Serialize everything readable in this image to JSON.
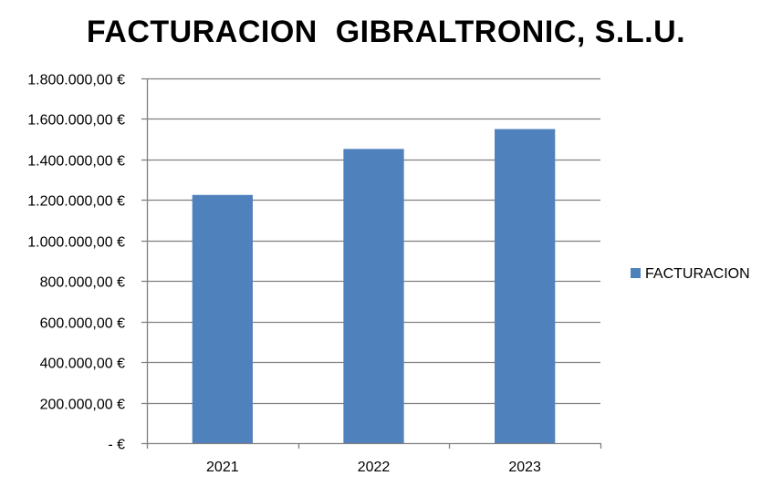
{
  "chart_data": {
    "type": "bar",
    "title": "FACTURACION  GIBRALTRONIC, S.L.U.",
    "categories": [
      "2021",
      "2022",
      "2023"
    ],
    "series": [
      {
        "name": "FACTURACION",
        "values": [
          1225000,
          1452000,
          1550000
        ]
      }
    ],
    "ylim": [
      0,
      1800000
    ],
    "y_ticks": [
      0,
      200000,
      400000,
      600000,
      800000,
      1000000,
      1200000,
      1400000,
      1600000,
      1800000
    ],
    "y_tick_labels": [
      "-  €",
      "200.000,00 €",
      "400.000,00 €",
      "600.000,00 €",
      "800.000,00 €",
      "1.000.000,00 €",
      "1.200.000,00 €",
      "1.400.000,00 €",
      "1.600.000,00 €",
      "1.800.000,00 €"
    ],
    "grid": true,
    "legend_position": "right",
    "colors": {
      "bar": "#4F81BD",
      "grid": "#808080",
      "axis": "#808080"
    }
  }
}
